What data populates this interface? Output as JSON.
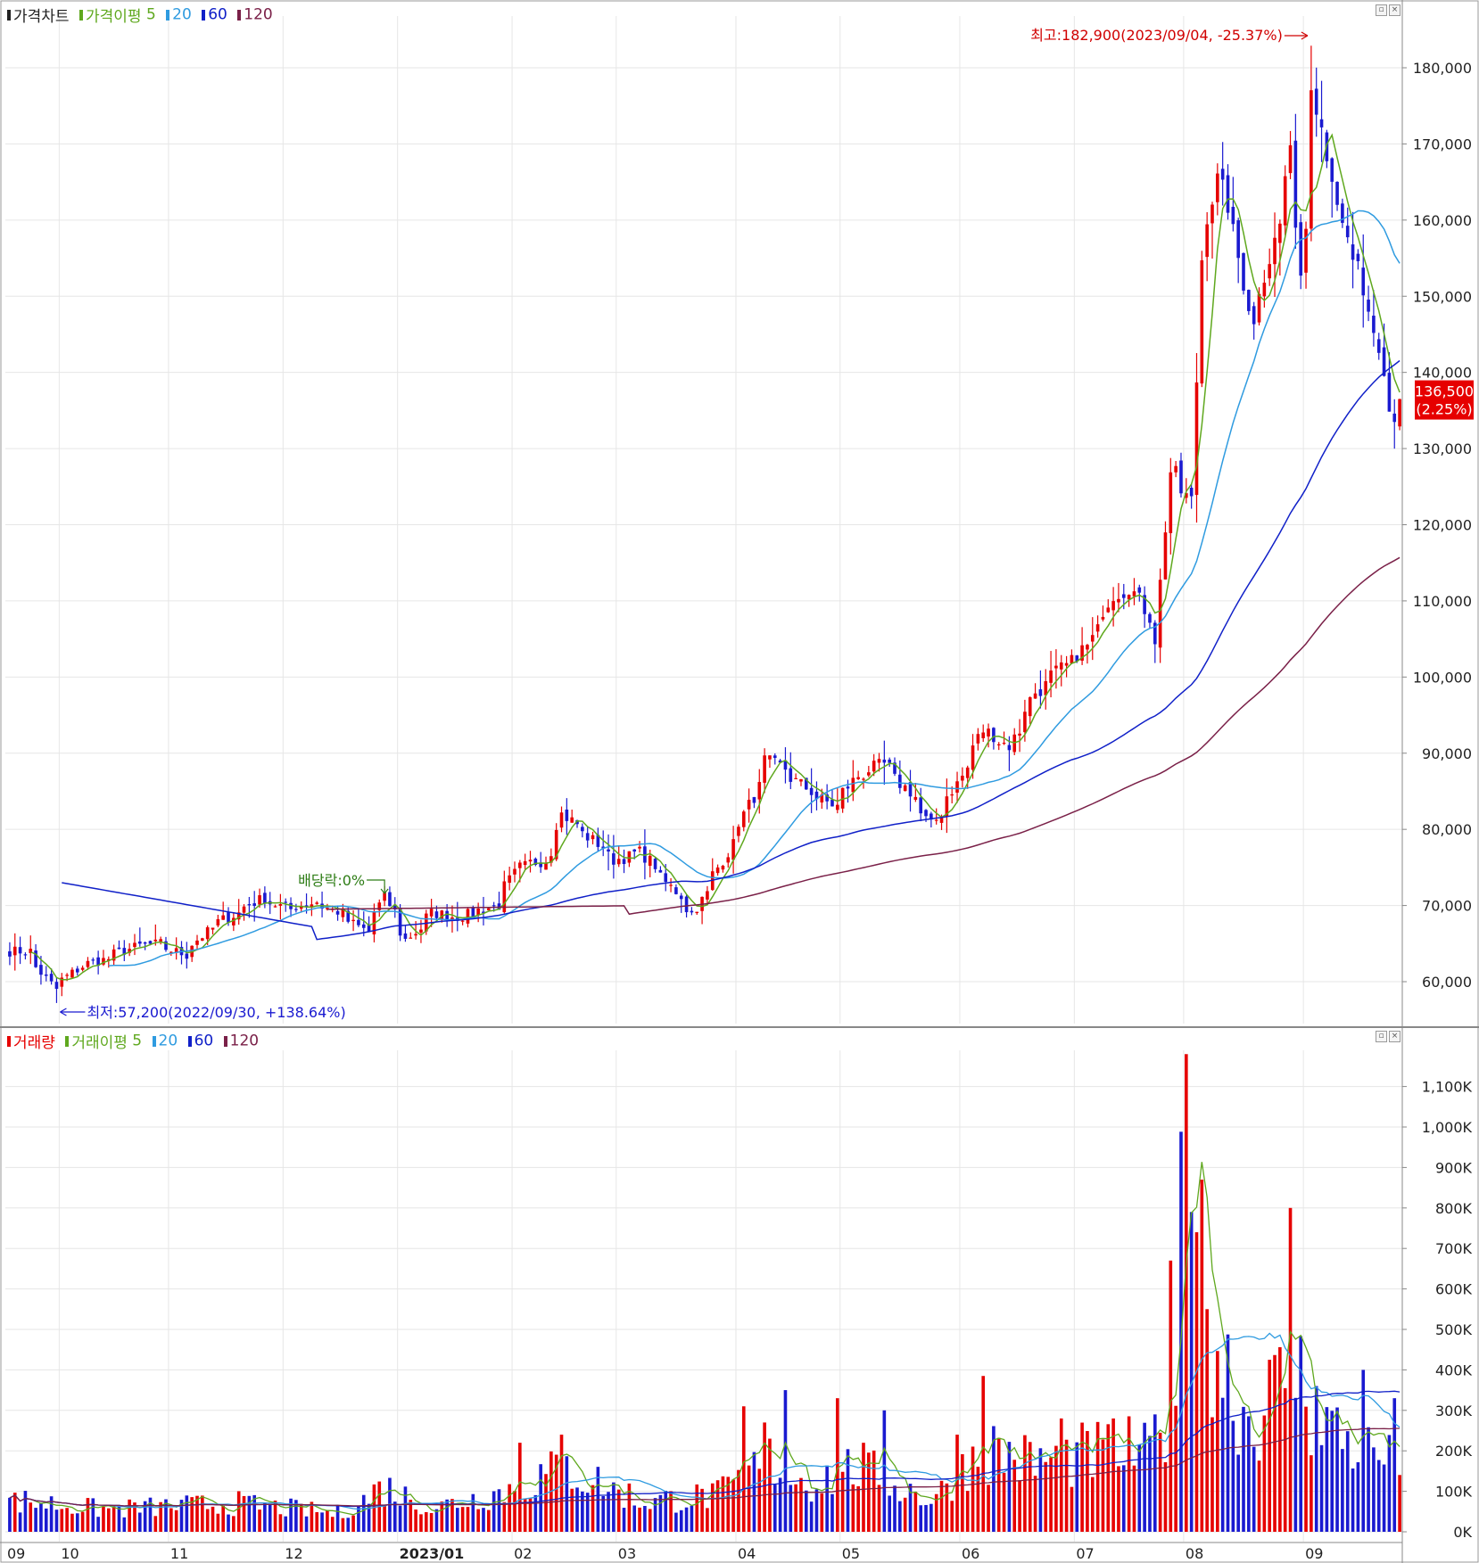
{
  "price_panel": {
    "legend": {
      "title": "가격차트",
      "ma_label": "가격이평",
      "ma_periods": [
        "5",
        "20",
        "60",
        "120"
      ],
      "colors": {
        "title": "#222222",
        "ma5": "#5fa81e",
        "ma20": "#2f9be0",
        "ma60": "#1020c8",
        "ma120": "#7a2048"
      }
    },
    "current_price": {
      "value": "136,500",
      "change": "(2.25%)",
      "color": "#e60000"
    },
    "annotations": {
      "high": "최고:182,900(2023/09/04, -25.37%)",
      "low": "최저:57,200(2022/09/30, +138.64%)",
      "dividend": "배당락:0%"
    }
  },
  "volume_panel": {
    "legend": {
      "title": "거래량",
      "ma_label": "거래이평",
      "ma_periods": [
        "5",
        "20",
        "60",
        "120"
      ]
    }
  },
  "colors": {
    "up": "#e60000",
    "down": "#1a1ad0",
    "grid": "#e6e6e6",
    "border": "#888888"
  },
  "chart_data": [
    {
      "type": "candlestick",
      "title": "가격차트",
      "ylim": [
        55000,
        182900
      ],
      "y_ticks": [
        "60,000",
        "70,000",
        "80,000",
        "90,000",
        "100,000",
        "110,000",
        "120,000",
        "130,000",
        "140,000",
        "150,000",
        "160,000",
        "170,000",
        "180,000"
      ],
      "x_tick_labels": [
        "09",
        "10",
        "11",
        "12",
        "2023/01",
        "02",
        "03",
        "04",
        "05",
        "06",
        "07",
        "08",
        "09"
      ],
      "start_month": "2022-09",
      "anchors": [
        [
          "2022-09-23",
          64000
        ],
        [
          "2022-09-30",
          59000
        ],
        [
          "2022-10-07",
          62000
        ],
        [
          "2022-10-14",
          63000
        ],
        [
          "2022-10-21",
          64500
        ],
        [
          "2022-10-28",
          65000
        ],
        [
          "2022-11-04",
          63500
        ],
        [
          "2022-11-11",
          67000
        ],
        [
          "2022-11-18",
          69000
        ],
        [
          "2022-11-25",
          71000
        ],
        [
          "2022-12-02",
          69500
        ],
        [
          "2022-12-09",
          70500
        ],
        [
          "2022-12-16",
          69000
        ],
        [
          "2022-12-23",
          66500
        ],
        [
          "2022-12-28",
          71000
        ],
        [
          "2023-01-03",
          65500
        ],
        [
          "2023-01-10",
          69000
        ],
        [
          "2023-01-17",
          68500
        ],
        [
          "2023-01-27",
          70000
        ],
        [
          "2023-02-02",
          75000
        ],
        [
          "2023-02-09",
          76000
        ],
        [
          "2023-02-14",
          82000
        ],
        [
          "2023-02-21",
          79000
        ],
        [
          "2023-02-28",
          76000
        ],
        [
          "2023-03-07",
          77000
        ],
        [
          "2023-03-14",
          73000
        ],
        [
          "2023-03-21",
          69000
        ],
        [
          "2023-03-28",
          75000
        ],
        [
          "2023-04-04",
          82000
        ],
        [
          "2023-04-10",
          89000
        ],
        [
          "2023-04-14",
          88000
        ],
        [
          "2023-04-21",
          85000
        ],
        [
          "2023-04-28",
          83000
        ],
        [
          "2023-05-04",
          87000
        ],
        [
          "2023-05-11",
          88500
        ],
        [
          "2023-05-18",
          85000
        ],
        [
          "2023-05-24",
          80500
        ],
        [
          "2023-05-31",
          86000
        ],
        [
          "2023-06-07",
          93000
        ],
        [
          "2023-06-14",
          91000
        ],
        [
          "2023-06-21",
          98000
        ],
        [
          "2023-06-28",
          101000
        ],
        [
          "2023-07-05",
          104000
        ],
        [
          "2023-07-12",
          111000
        ],
        [
          "2023-07-17",
          112000
        ],
        [
          "2023-07-24",
          105000
        ],
        [
          "2023-07-27",
          127000
        ],
        [
          "2023-08-02",
          123000
        ],
        [
          "2023-08-04",
          155000
        ],
        [
          "2023-08-09",
          165000
        ],
        [
          "2023-08-14",
          158000
        ],
        [
          "2023-08-18",
          146000
        ],
        [
          "2023-08-23",
          155000
        ],
        [
          "2023-08-29",
          168000
        ],
        [
          "2023-08-31",
          153000
        ],
        [
          "2023-09-04",
          179000
        ],
        [
          "2023-09-08",
          166000
        ],
        [
          "2023-09-14",
          155000
        ],
        [
          "2023-09-19",
          147000
        ],
        [
          "2023-09-22",
          140000
        ],
        [
          "2023-09-26",
          133500
        ],
        [
          "2023-09-27",
          136500
        ]
      ],
      "high": {
        "value": 182900,
        "date": "2023/09/04",
        "change": "-25.37%"
      },
      "low": {
        "value": 57200,
        "date": "2022/09/30",
        "change": "+138.64%"
      },
      "last": {
        "value": 136500,
        "change": "2.25%"
      },
      "series": [
        {
          "name": "5",
          "color": "#5fa81e"
        },
        {
          "name": "20",
          "color": "#2f9be0"
        },
        {
          "name": "60",
          "color": "#1020c8"
        },
        {
          "name": "120",
          "color": "#7a2048"
        }
      ]
    },
    {
      "type": "bar",
      "title": "거래량",
      "ylim": [
        0,
        1180000
      ],
      "y_ticks": [
        "0K",
        "100K",
        "200K",
        "300K",
        "400K",
        "500K",
        "600K",
        "700K",
        "800K",
        "900K",
        "1,000K",
        "1,100K"
      ],
      "anchors": [
        [
          "2022-09-23",
          75000
        ],
        [
          "2022-10-14",
          55000
        ],
        [
          "2022-11-18",
          70000
        ],
        [
          "2022-12-16",
          45000
        ],
        [
          "2022-12-28",
          110000
        ],
        [
          "2023-01-10",
          60000
        ],
        [
          "2023-02-02",
          110000
        ],
        [
          "2023-02-14",
          160000
        ],
        [
          "2023-03-07",
          75000
        ],
        [
          "2023-03-28",
          90000
        ],
        [
          "2023-04-10",
          180000
        ],
        [
          "2023-04-21",
          120000
        ],
        [
          "2023-05-04",
          160000
        ],
        [
          "2023-05-24",
          80000
        ],
        [
          "2023-06-07",
          210000
        ],
        [
          "2023-06-21",
          170000
        ],
        [
          "2023-07-05",
          190000
        ],
        [
          "2023-07-17",
          200000
        ],
        [
          "2023-07-24",
          170000
        ],
        [
          "2023-07-27",
          320000
        ],
        [
          "2023-08-02",
          900000
        ],
        [
          "2023-08-09",
          450000
        ],
        [
          "2023-08-18",
          260000
        ],
        [
          "2023-08-29",
          410000
        ],
        [
          "2023-09-04",
          300000
        ],
        [
          "2023-09-14",
          220000
        ],
        [
          "2023-09-27",
          160000
        ]
      ],
      "spikes": [
        [
          "2023-02-02",
          220000
        ],
        [
          "2023-02-14",
          240000
        ],
        [
          "2023-04-04",
          310000
        ],
        [
          "2023-04-10",
          270000
        ],
        [
          "2023-04-14",
          350000
        ],
        [
          "2023-04-28",
          330000
        ],
        [
          "2023-05-11",
          300000
        ],
        [
          "2023-05-31",
          240000
        ],
        [
          "2023-06-07",
          385000
        ],
        [
          "2023-06-28",
          280000
        ],
        [
          "2023-07-12",
          280000
        ],
        [
          "2023-07-24",
          290000
        ],
        [
          "2023-07-27",
          670000
        ],
        [
          "2023-08-01",
          1180000
        ],
        [
          "2023-08-03",
          740000
        ],
        [
          "2023-08-04",
          870000
        ],
        [
          "2023-08-07",
          550000
        ],
        [
          "2023-08-29",
          800000
        ],
        [
          "2023-09-05",
          360000
        ],
        [
          "2023-09-18",
          400000
        ],
        [
          "2023-09-26",
          330000
        ]
      ],
      "series": [
        {
          "name": "5",
          "color": "#5fa81e"
        },
        {
          "name": "20",
          "color": "#2f9be0"
        },
        {
          "name": "60",
          "color": "#1020c8"
        },
        {
          "name": "120",
          "color": "#7a2048"
        }
      ]
    }
  ]
}
